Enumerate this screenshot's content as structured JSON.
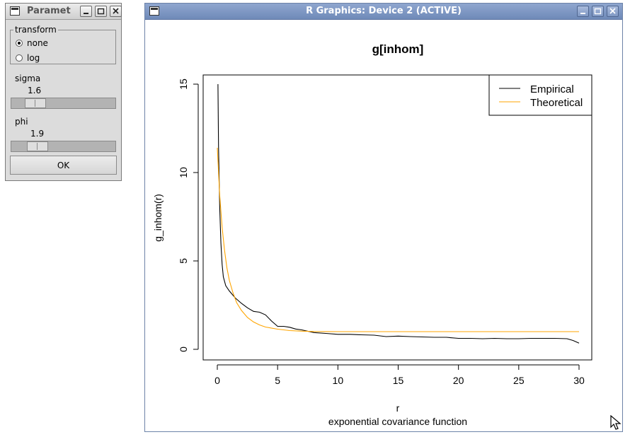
{
  "params_window": {
    "title": "Paramet",
    "transform": {
      "legend": "transform",
      "options": [
        {
          "label": "none",
          "selected": true
        },
        {
          "label": "log",
          "selected": false
        }
      ]
    },
    "sigma": {
      "label": "sigma",
      "value": "1.6"
    },
    "phi": {
      "label": "phi",
      "value": "1.9"
    },
    "ok_label": "OK"
  },
  "r_window": {
    "title": "R Graphics: Device 2 (ACTIVE)"
  },
  "chart_data": {
    "type": "line",
    "title": "g[inhom]",
    "xlabel": "r",
    "ylabel": "g_inhom(r)",
    "subtitle": "exponential covariance function",
    "xlim": [
      0,
      30
    ],
    "ylim": [
      0,
      15
    ],
    "xticks": [
      "0",
      "5",
      "10",
      "15",
      "20",
      "25",
      "30"
    ],
    "yticks": [
      "0",
      "5",
      "10",
      "15"
    ],
    "legend_position": "top-right",
    "series": [
      {
        "name": "Empirical",
        "color": "#000000",
        "x": [
          0.05,
          0.1,
          0.2,
          0.3,
          0.4,
          0.5,
          0.7,
          1.0,
          1.5,
          2.0,
          2.5,
          3.0,
          3.5,
          4.0,
          4.5,
          5.0,
          5.5,
          6.0,
          6.5,
          7.0,
          8.0,
          9.0,
          10.0,
          11.0,
          12.0,
          13.0,
          14.0,
          15.0,
          16.0,
          17.0,
          18.0,
          19.0,
          20.0,
          21.0,
          22.0,
          23.0,
          24.0,
          25.0,
          26.0,
          27.0,
          28.0,
          29.0,
          29.5,
          30.0
        ],
        "y": [
          15.0,
          11.5,
          8.0,
          6.0,
          4.8,
          4.1,
          3.6,
          3.3,
          2.9,
          2.6,
          2.35,
          2.15,
          2.1,
          1.95,
          1.6,
          1.3,
          1.3,
          1.25,
          1.15,
          1.1,
          0.95,
          0.9,
          0.85,
          0.85,
          0.82,
          0.8,
          0.72,
          0.75,
          0.72,
          0.7,
          0.68,
          0.68,
          0.62,
          0.62,
          0.6,
          0.62,
          0.6,
          0.6,
          0.62,
          0.62,
          0.62,
          0.6,
          0.5,
          0.35
        ]
      },
      {
        "name": "Theoretical",
        "color": "#ffa500",
        "x": [
          0.0,
          0.2,
          0.4,
          0.6,
          0.8,
          1.0,
          1.3,
          1.6,
          2.0,
          2.5,
          3.0,
          3.5,
          4.0,
          5.0,
          6.0,
          7.0,
          8.0,
          10.0,
          15.0,
          20.0,
          25.0,
          30.0
        ],
        "y": [
          11.4,
          8.7,
          6.9,
          5.6,
          4.6,
          3.9,
          3.2,
          2.64,
          2.2,
          1.8,
          1.55,
          1.38,
          1.26,
          1.14,
          1.06,
          1.03,
          1.01,
          1.0,
          1.0,
          1.0,
          1.0,
          1.0
        ]
      }
    ]
  }
}
